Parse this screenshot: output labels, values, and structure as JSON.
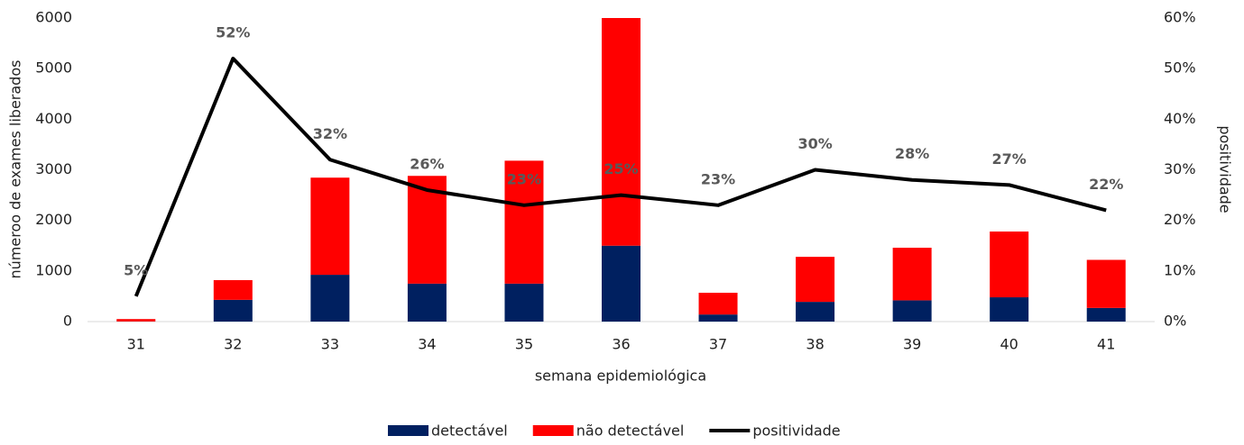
{
  "chart_data": {
    "type": "bar-line",
    "x_label": "semana epidemiológica",
    "y_label": "númeroo de exames liberados",
    "y2_label": "positividade",
    "categories": [
      "31",
      "32",
      "33",
      "34",
      "35",
      "36",
      "37",
      "38",
      "39",
      "40",
      "41"
    ],
    "series": [
      {
        "name": "detectável",
        "type": "bar",
        "color": "#002060",
        "values": [
          3,
          430,
          925,
          750,
          750,
          1500,
          140,
          390,
          420,
          480,
          270
        ]
      },
      {
        "name": "não detectável",
        "type": "bar",
        "color": "#ff0000",
        "values": [
          47,
          390,
          1920,
          2130,
          2430,
          4500,
          430,
          890,
          1040,
          1300,
          950
        ]
      },
      {
        "name": "positividade",
        "type": "line",
        "axis": "y2",
        "color": "#000000",
        "values": [
          5,
          52,
          32,
          26,
          23,
          25,
          23,
          30,
          28,
          27,
          22
        ],
        "value_labels": [
          "5%",
          "52%",
          "32%",
          "26%",
          "23%",
          "25%",
          "23%",
          "30%",
          "28%",
          "27%",
          "22%"
        ]
      }
    ],
    "stacked": true,
    "ylim": [
      0,
      6000
    ],
    "yticks": [
      0,
      1000,
      2000,
      3000,
      4000,
      5000,
      6000
    ],
    "y2lim": [
      0,
      60
    ],
    "y2ticks": [
      {
        "value": 0,
        "label": "0%"
      },
      {
        "value": 10,
        "label": "10%"
      },
      {
        "value": 20,
        "label": "20%"
      },
      {
        "value": 30,
        "label": "30%"
      },
      {
        "value": 40,
        "label": "40%"
      },
      {
        "value": 50,
        "label": "50%"
      },
      {
        "value": 60,
        "label": "60%"
      }
    ],
    "legend": "bottom"
  }
}
